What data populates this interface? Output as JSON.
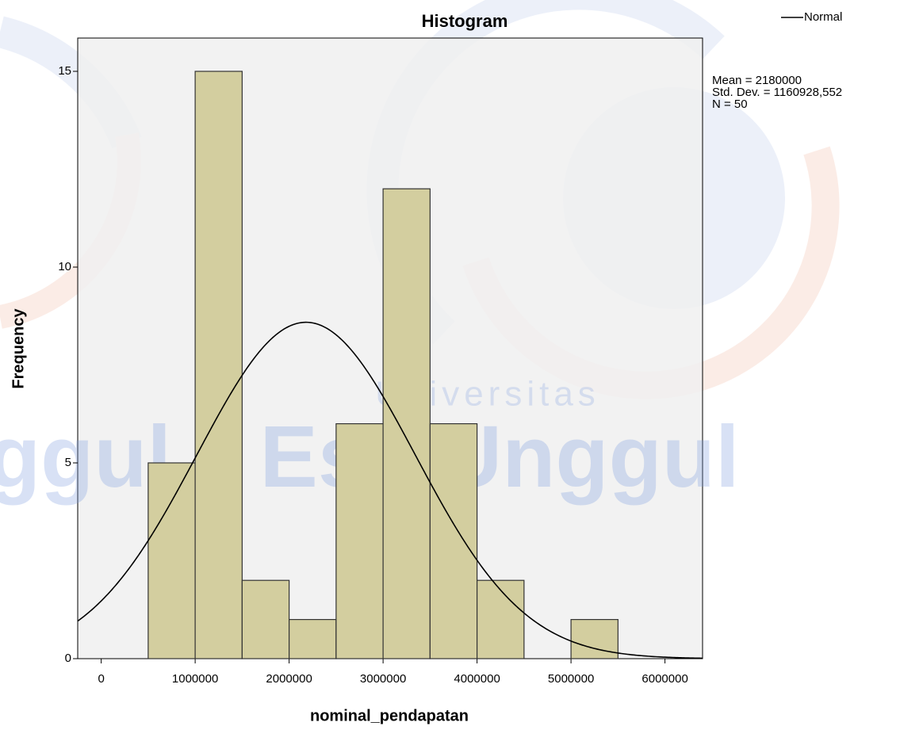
{
  "chart_data": {
    "type": "histogram",
    "title": "Histogram",
    "x_label": "nominal_pendapatan",
    "y_label": "Frequency",
    "bins": [
      500000,
      1000000,
      1500000,
      2000000,
      2500000,
      3000000,
      3500000,
      4000000,
      4500000,
      5000000,
      5500000
    ],
    "values": [
      5,
      15,
      2,
      1,
      6,
      12,
      6,
      2,
      0,
      1
    ],
    "color": "#d3ce9f",
    "xlim": [
      -250000,
      6400000
    ],
    "xticks": [
      0,
      1000000,
      2000000,
      3000000,
      4000000,
      5000000,
      6000000
    ],
    "ylim": [
      0,
      15.85
    ],
    "yticks": [
      0,
      5,
      10,
      15
    ],
    "legend": "top-right",
    "normal_curve": {
      "name": "Normal",
      "color": "#000000",
      "mean": {
        "value": 2180000,
        "label": "Mean = 2180000"
      },
      "std": {
        "value": 1160928.552,
        "label": "Std. Dev. = 1160928,552"
      },
      "n": {
        "value": 50,
        "label": "N = 50"
      }
    },
    "watermark": [
      "Universitas",
      "Esa Unggul",
      "ggul"
    ]
  }
}
